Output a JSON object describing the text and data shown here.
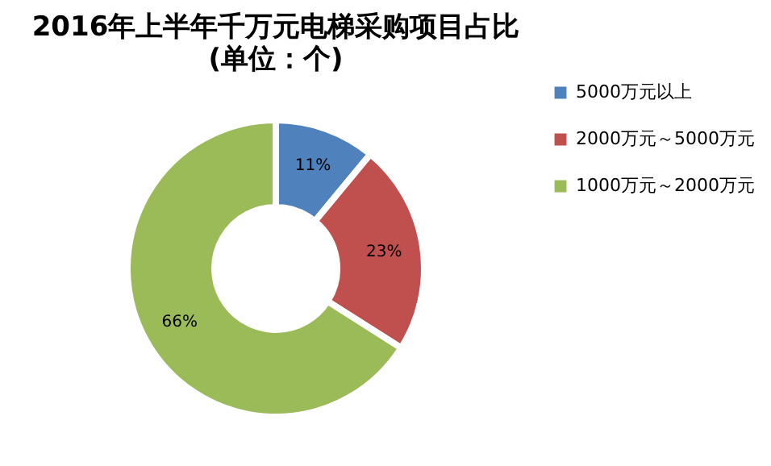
{
  "chart_data": {
    "type": "donut",
    "title": "2016年上半年千万元电梯采购项目占比",
    "subtitle": "(单位：个)",
    "categories": [
      "5000万元以上",
      "2000万元～5000万元",
      "1000万元～2000万元"
    ],
    "values": [
      11,
      23,
      66
    ],
    "colors": [
      "#4f81bd",
      "#c0504d",
      "#9bbb59"
    ],
    "value_labels": [
      "11%",
      "23%",
      "66%"
    ],
    "legend": "right"
  }
}
